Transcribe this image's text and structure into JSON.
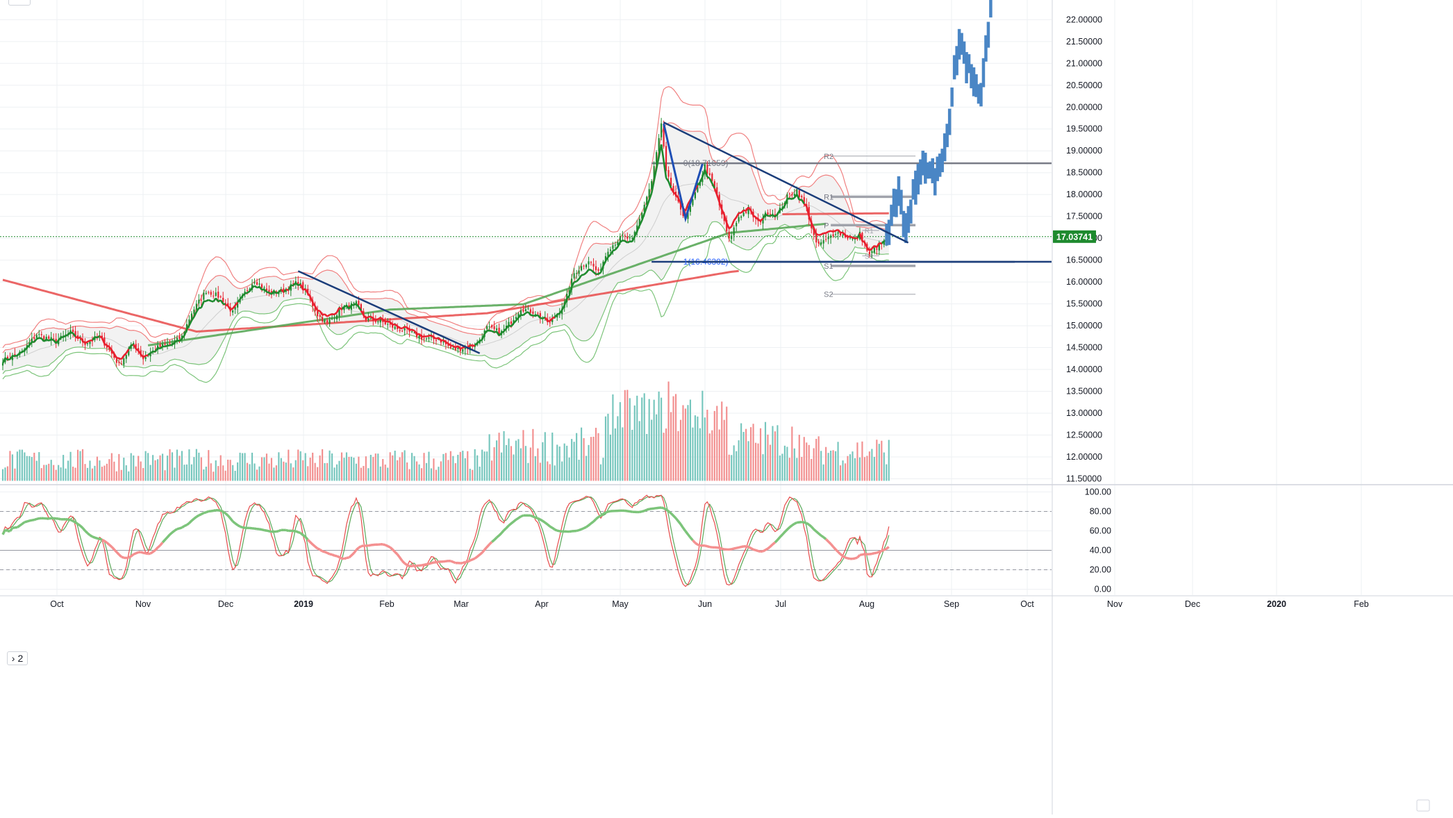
{
  "chart_data": [
    {
      "type": "candlestick",
      "price_axis": {
        "ticks": [
          "22.00000",
          "21.50000",
          "21.00000",
          "20.50000",
          "20.00000",
          "19.50000",
          "19.00000",
          "18.50000",
          "18.00000",
          "17.50000",
          "17.00000",
          "16.50000",
          "16.00000",
          "15.50000",
          "15.00000",
          "14.50000",
          "14.00000",
          "13.50000",
          "13.00000",
          "12.50000",
          "12.00000",
          "11.50000"
        ],
        "tick_values": [
          22,
          21.5,
          21,
          20.5,
          20,
          19.5,
          19,
          18.5,
          18,
          17.5,
          17,
          16.5,
          16,
          15.5,
          15,
          14.5,
          14,
          13.5,
          13,
          12.5,
          12,
          11.5
        ],
        "ylim": [
          11.38,
          22.45
        ],
        "last_price": "17.03741",
        "last_price_value": 17.03741,
        "last_price_color": "#1e8a2e"
      },
      "time_axis": {
        "labels": [
          "Oct",
          "Nov",
          "Dec",
          "2019",
          "Feb",
          "Mar",
          "Apr",
          "May",
          "Jun",
          "Jul",
          "Aug",
          "Sep",
          "Oct",
          "Nov",
          "Dec",
          "2020",
          "Feb"
        ],
        "bold": [
          "2019",
          "2020"
        ]
      },
      "colors": {
        "up": "#1e8a2e",
        "down": "#e8202e",
        "projection": "#4a86c5",
        "trendline": "#1b3d7a",
        "ma_red": "#e84b4b",
        "ma_green": "#5aa859",
        "band_fill": "#f2f2f2"
      },
      "anchors": [
        {
          "t": 0,
          "p": 14.2
        },
        {
          "t": 8,
          "p": 14.4
        },
        {
          "t": 14,
          "p": 14.8
        },
        {
          "t": 22,
          "p": 14.65
        },
        {
          "t": 28,
          "p": 14.85
        },
        {
          "t": 34,
          "p": 14.6
        },
        {
          "t": 40,
          "p": 14.75
        },
        {
          "t": 44,
          "p": 14.45
        },
        {
          "t": 48,
          "p": 14.1
        },
        {
          "t": 54,
          "p": 14.6
        },
        {
          "t": 58,
          "p": 14.25
        },
        {
          "t": 64,
          "p": 14.5
        },
        {
          "t": 70,
          "p": 14.6
        },
        {
          "t": 74,
          "p": 14.75
        },
        {
          "t": 78,
          "p": 15.3
        },
        {
          "t": 84,
          "p": 15.8
        },
        {
          "t": 90,
          "p": 15.65
        },
        {
          "t": 95,
          "p": 15.3
        },
        {
          "t": 100,
          "p": 15.75
        },
        {
          "t": 104,
          "p": 16.05
        },
        {
          "t": 110,
          "p": 15.75
        },
        {
          "t": 116,
          "p": 15.8
        },
        {
          "t": 122,
          "p": 16.0
        },
        {
          "t": 126,
          "p": 15.7
        },
        {
          "t": 130,
          "p": 15.25
        },
        {
          "t": 134,
          "p": 15.05
        },
        {
          "t": 140,
          "p": 15.4
        },
        {
          "t": 146,
          "p": 15.5
        },
        {
          "t": 150,
          "p": 15.15
        },
        {
          "t": 156,
          "p": 15.1
        },
        {
          "t": 162,
          "p": 14.95
        },
        {
          "t": 168,
          "p": 14.85
        },
        {
          "t": 174,
          "p": 14.7
        },
        {
          "t": 180,
          "p": 14.7
        },
        {
          "t": 186,
          "p": 14.45
        },
        {
          "t": 192,
          "p": 14.5
        },
        {
          "t": 196,
          "p": 14.6
        },
        {
          "t": 200,
          "p": 14.95
        },
        {
          "t": 206,
          "p": 14.85
        },
        {
          "t": 210,
          "p": 15.1
        },
        {
          "t": 214,
          "p": 15.4
        },
        {
          "t": 220,
          "p": 15.3
        },
        {
          "t": 226,
          "p": 15.05
        },
        {
          "t": 232,
          "p": 15.5
        },
        {
          "t": 236,
          "p": 16.2
        },
        {
          "t": 242,
          "p": 16.5
        },
        {
          "t": 246,
          "p": 16.2
        },
        {
          "t": 250,
          "p": 16.75
        },
        {
          "t": 256,
          "p": 17.05
        },
        {
          "t": 260,
          "p": 16.95
        },
        {
          "t": 264,
          "p": 17.6
        },
        {
          "t": 268,
          "p": 18.3
        },
        {
          "t": 272,
          "p": 19.6
        },
        {
          "t": 274,
          "p": 18.5
        },
        {
          "t": 278,
          "p": 17.9
        },
        {
          "t": 282,
          "p": 17.45
        },
        {
          "t": 286,
          "p": 18.0
        },
        {
          "t": 290,
          "p": 18.65
        },
        {
          "t": 294,
          "p": 18.15
        },
        {
          "t": 298,
          "p": 17.35
        },
        {
          "t": 300,
          "p": 16.95
        },
        {
          "t": 304,
          "p": 17.5
        },
        {
          "t": 308,
          "p": 17.65
        },
        {
          "t": 312,
          "p": 17.35
        },
        {
          "t": 316,
          "p": 17.6
        },
        {
          "t": 320,
          "p": 17.55
        },
        {
          "t": 324,
          "p": 17.95
        },
        {
          "t": 328,
          "p": 18.1
        },
        {
          "t": 332,
          "p": 17.7
        },
        {
          "t": 334,
          "p": 17.25
        },
        {
          "t": 336,
          "p": 16.85
        },
        {
          "t": 340,
          "p": 16.95
        },
        {
          "t": 344,
          "p": 17.15
        },
        {
          "t": 348,
          "p": 17.05
        },
        {
          "t": 352,
          "p": 16.95
        },
        {
          "t": 354,
          "p": 17.1
        },
        {
          "t": 356,
          "p": 16.85
        },
        {
          "t": 358,
          "p": 16.6
        },
        {
          "t": 360,
          "p": 16.75
        },
        {
          "t": 364,
          "p": 16.9
        },
        {
          "t": 366,
          "p": 17.05
        }
      ],
      "projection_anchors": [
        {
          "t": 365,
          "p": 17.0
        },
        {
          "t": 367,
          "p": 17.5
        },
        {
          "t": 370,
          "p": 18.0
        },
        {
          "t": 373,
          "p": 17.2
        },
        {
          "t": 376,
          "p": 18.1
        },
        {
          "t": 380,
          "p": 18.6
        },
        {
          "t": 384,
          "p": 18.4
        },
        {
          "t": 388,
          "p": 18.8
        },
        {
          "t": 391,
          "p": 19.8
        },
        {
          "t": 393,
          "p": 21.0
        },
        {
          "t": 396,
          "p": 21.5
        },
        {
          "t": 398,
          "p": 21.0
        },
        {
          "t": 402,
          "p": 20.5
        },
        {
          "t": 404,
          "p": 20.2
        },
        {
          "t": 406,
          "p": 21.2
        },
        {
          "t": 408,
          "p": 22.2
        }
      ],
      "trendlines": [
        {
          "from": {
            "t": 122,
            "p": 16.25
          },
          "to": {
            "t": 197,
            "p": 14.37
          }
        },
        {
          "from": {
            "t": 273,
            "p": 19.65
          },
          "to": {
            "t": 374,
            "p": 16.9
          }
        },
        {
          "from": {
            "t": 283,
            "p": 16.46
          },
          "to": {
            "t": 418,
            "p": 16.46
          }
        }
      ],
      "zigzag": [
        {
          "t": 273,
          "p": 19.62
        },
        {
          "t": 282,
          "p": 17.45
        },
        {
          "t": 289,
          "p": 18.7
        }
      ],
      "fib_levels": [
        {
          "label": "0(18.71659)",
          "p": 18.71659,
          "t0": 268,
          "t1": 418
        },
        {
          "label": "1(16.46302)",
          "p": 16.46302,
          "t0": 268,
          "t1": 418
        }
      ],
      "pivots": [
        {
          "label": "R2",
          "p": 18.88,
          "t0": 342,
          "t1": 377
        },
        {
          "label": "R1",
          "p": 17.95,
          "t0": 342,
          "t1": 377
        },
        {
          "label": "P",
          "p": 17.3,
          "t0": 342,
          "t1": 377
        },
        {
          "label": "S1",
          "p": 16.37,
          "t0": 342,
          "t1": 377
        },
        {
          "label": "S2",
          "p": 15.72,
          "t0": 342,
          "t1": 377
        }
      ],
      "mini_pivots": [
        {
          "label": "R1",
          "p": 17.18
        },
        {
          "label": "S1",
          "p": 16.6
        }
      ]
    },
    {
      "type": "bar",
      "title": "",
      "series": [
        {
          "name": "",
          "colors": {
            "up": "#76c6bd",
            "down": "#f28f8f"
          }
        }
      ],
      "peaks": [
        {
          "t": 275,
          "h": 13.0
        },
        {
          "t": 276,
          "h": 9.0
        },
        {
          "t": 268,
          "h": 8.0
        },
        {
          "t": 292,
          "h": 6.2
        },
        {
          "t": 256,
          "h": 7.0
        }
      ]
    },
    {
      "type": "line",
      "indicator_toggle": "2",
      "y_ticks": [
        "100.00",
        "80.00",
        "60.00",
        "40.00",
        "20.00",
        "0.00"
      ],
      "y_tick_values": [
        100,
        80,
        60,
        40,
        20,
        0
      ],
      "ylim": [
        -6,
        106
      ],
      "dashed_levels": [
        80,
        20
      ],
      "solid_level": 40,
      "colors": {
        "fast": "#e84b4b",
        "slow": "#5aa859",
        "thick_up": "#7cc47a",
        "thick_down": "#f49090"
      }
    }
  ]
}
